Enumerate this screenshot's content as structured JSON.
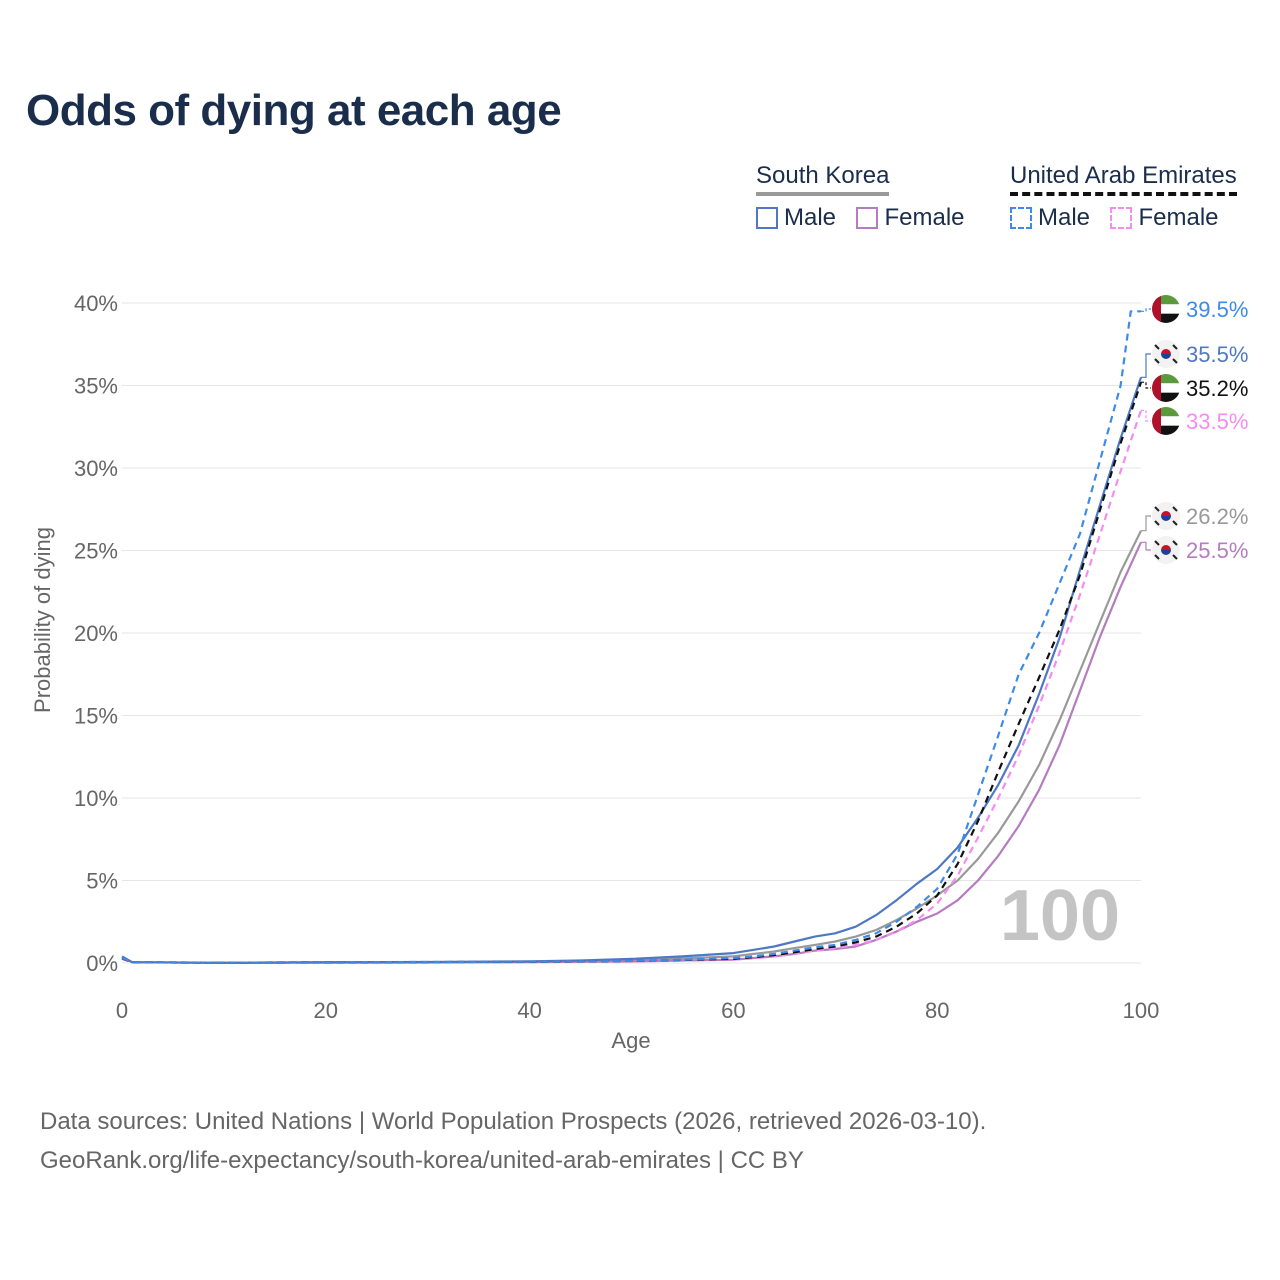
{
  "title": "Odds of dying at each age",
  "legend": {
    "south_korea": {
      "name": "South Korea",
      "male": "Male",
      "female": "Female"
    },
    "uae": {
      "name": "United Arab Emirates",
      "male": "Male",
      "female": "Female"
    }
  },
  "colors": {
    "sk_male": "#4f78c4",
    "sk_female": "#b57cbf",
    "sk_total": "#999999",
    "ae_male": "#3d8ae8",
    "ae_female": "#f58cf0",
    "ae_total": "#111111",
    "title": "#1a2e4c",
    "watermark": "#c4c4c4"
  },
  "watermark": "100",
  "sources": {
    "line1": "Data sources: United Nations | World Population Prospects (2026, retrieved 2026-03-10).",
    "line2": "GeoRank.org/life-expectancy/south-korea/united-arab-emirates | CC BY"
  },
  "chart_data": {
    "type": "line",
    "title": "Odds of dying at each age",
    "xlabel": "Age",
    "ylabel": "Probability of dying",
    "xlim": [
      0,
      100
    ],
    "ylim": [
      0,
      40
    ],
    "xticks": [
      0,
      20,
      40,
      60,
      80,
      100
    ],
    "yticks": [
      0,
      5,
      10,
      15,
      20,
      25,
      30,
      35,
      40
    ],
    "ytick_labels": [
      "0%",
      "5%",
      "10%",
      "15%",
      "20%",
      "25%",
      "30%",
      "35%",
      "40%"
    ],
    "grid": true,
    "series": [
      {
        "name": "South Korea Male",
        "key": "sk_male",
        "dash": false,
        "flag": "south-korea",
        "end_label": "35.5%",
        "label_y": 35.5,
        "x": [
          0,
          1,
          10,
          20,
          30,
          40,
          45,
          50,
          55,
          60,
          62,
          64,
          66,
          68,
          70,
          72,
          74,
          76,
          78,
          80,
          82,
          84,
          86,
          88,
          90,
          92,
          94,
          96,
          98,
          100
        ],
        "values": [
          0.4,
          0.05,
          0.01,
          0.05,
          0.06,
          0.1,
          0.15,
          0.25,
          0.4,
          0.6,
          0.8,
          1.0,
          1.3,
          1.6,
          1.8,
          2.2,
          2.9,
          3.8,
          4.8,
          5.7,
          7.0,
          8.8,
          10.8,
          13.2,
          16.3,
          19.7,
          23.8,
          27.8,
          31.8,
          35.5
        ]
      },
      {
        "name": "South Korea Female",
        "key": "sk_female",
        "dash": false,
        "flag": "south-korea",
        "end_label": "25.5%",
        "label_y": 25.5,
        "x": [
          0,
          1,
          10,
          20,
          30,
          40,
          45,
          50,
          55,
          60,
          62,
          64,
          66,
          68,
          70,
          72,
          74,
          76,
          78,
          80,
          82,
          84,
          86,
          88,
          90,
          92,
          94,
          96,
          98,
          100
        ],
        "values": [
          0.35,
          0.04,
          0.01,
          0.02,
          0.03,
          0.05,
          0.07,
          0.1,
          0.15,
          0.2,
          0.3,
          0.4,
          0.55,
          0.75,
          0.85,
          1.0,
          1.4,
          1.9,
          2.5,
          3.0,
          3.8,
          5.0,
          6.5,
          8.3,
          10.5,
          13.2,
          16.5,
          19.8,
          22.8,
          25.5
        ]
      },
      {
        "name": "South Korea",
        "key": "sk_total",
        "dash": false,
        "flag": "south-korea",
        "end_label": "26.2%",
        "label_y": 26.2,
        "x": [
          0,
          1,
          10,
          20,
          30,
          40,
          45,
          50,
          55,
          60,
          62,
          64,
          66,
          68,
          70,
          72,
          74,
          76,
          78,
          80,
          82,
          84,
          86,
          88,
          90,
          92,
          94,
          96,
          98,
          100
        ],
        "values": [
          0.38,
          0.045,
          0.01,
          0.03,
          0.04,
          0.08,
          0.1,
          0.17,
          0.27,
          0.4,
          0.55,
          0.7,
          0.9,
          1.1,
          1.3,
          1.6,
          2.0,
          2.6,
          3.3,
          4.1,
          5.0,
          6.3,
          7.9,
          9.8,
          12.0,
          14.7,
          17.7,
          20.7,
          23.7,
          26.2
        ]
      },
      {
        "name": "United Arab Emirates Male",
        "key": "ae_male",
        "dash": true,
        "flag": "uae",
        "end_label": "39.5%",
        "label_y": 39.5,
        "x": [
          0,
          1,
          10,
          20,
          30,
          40,
          45,
          50,
          55,
          60,
          62,
          64,
          66,
          68,
          70,
          72,
          74,
          76,
          78,
          80,
          82,
          84,
          86,
          88,
          90,
          92,
          94,
          96,
          98,
          99,
          100
        ],
        "values": [
          0.3,
          0.05,
          0.02,
          0.05,
          0.06,
          0.08,
          0.1,
          0.13,
          0.2,
          0.3,
          0.4,
          0.55,
          0.75,
          0.95,
          1.1,
          1.4,
          1.8,
          2.5,
          3.4,
          4.5,
          6.6,
          10.2,
          13.8,
          17.5,
          20.0,
          23.0,
          26.0,
          30.5,
          35.0,
          39.5,
          39.5
        ]
      },
      {
        "name": "United Arab Emirates Female",
        "key": "ae_female",
        "dash": true,
        "flag": "uae",
        "end_label": "33.5%",
        "label_y": 33.5,
        "x": [
          0,
          1,
          10,
          20,
          30,
          40,
          45,
          50,
          55,
          60,
          62,
          64,
          66,
          68,
          70,
          72,
          74,
          76,
          78,
          80,
          82,
          84,
          86,
          88,
          90,
          92,
          94,
          96,
          98,
          100
        ],
        "values": [
          0.25,
          0.04,
          0.02,
          0.04,
          0.05,
          0.06,
          0.08,
          0.1,
          0.15,
          0.2,
          0.28,
          0.4,
          0.55,
          0.75,
          0.9,
          1.1,
          1.4,
          1.9,
          2.6,
          3.6,
          5.3,
          7.6,
          10.0,
          12.6,
          15.6,
          18.8,
          22.3,
          26.0,
          29.8,
          33.5
        ]
      },
      {
        "name": "United Arab Emirates",
        "key": "ae_total",
        "dash": true,
        "flag": "uae",
        "end_label": "35.2%",
        "label_y": 35.2,
        "x": [
          0,
          1,
          10,
          20,
          30,
          40,
          45,
          50,
          55,
          60,
          62,
          64,
          66,
          68,
          70,
          72,
          74,
          76,
          78,
          80,
          82,
          84,
          86,
          88,
          90,
          92,
          94,
          96,
          98,
          100
        ],
        "values": [
          0.28,
          0.045,
          0.02,
          0.045,
          0.055,
          0.07,
          0.09,
          0.12,
          0.18,
          0.25,
          0.35,
          0.48,
          0.65,
          0.85,
          1.0,
          1.25,
          1.6,
          2.2,
          3.0,
          4.1,
          6.0,
          8.6,
          11.6,
          14.5,
          17.3,
          20.2,
          23.5,
          27.5,
          31.5,
          35.2
        ]
      }
    ]
  }
}
